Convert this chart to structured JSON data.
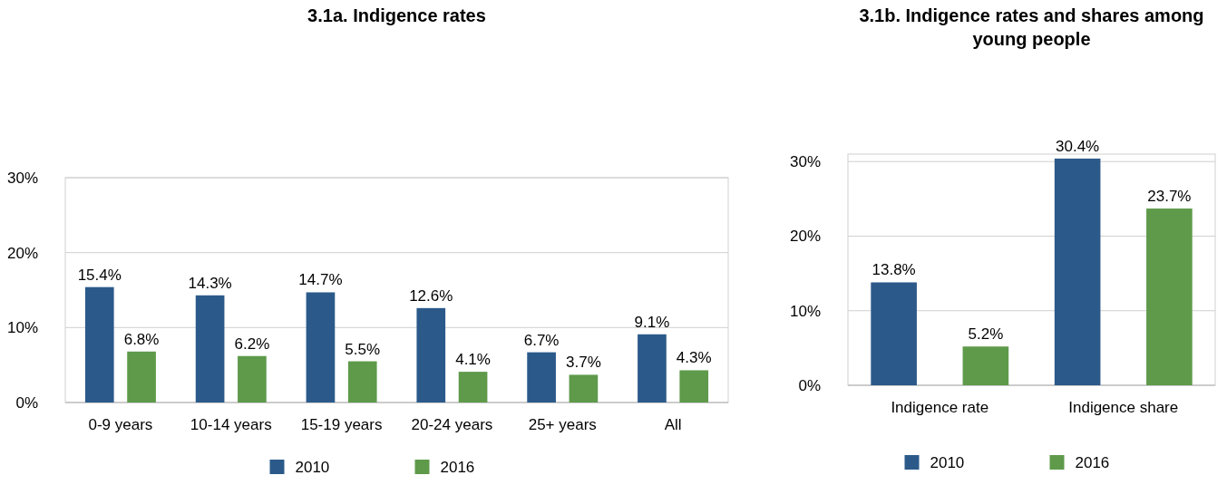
{
  "chart_data": [
    {
      "type": "bar",
      "title": "3.1a. Indigence rates",
      "categories": [
        "0-9 years",
        "10-14 years",
        "15-19 years",
        "20-24 years",
        "25+ years",
        "All"
      ],
      "series": [
        {
          "name": "2010",
          "color": "#2b5a8a",
          "values": [
            15.4,
            14.3,
            14.7,
            12.6,
            6.7,
            9.1
          ],
          "value_labels": [
            "15.4%",
            "14.3%",
            "14.7%",
            "12.6%",
            "6.7%",
            "9.1%"
          ]
        },
        {
          "name": "2016",
          "color": "#5e9a4a",
          "values": [
            6.8,
            6.2,
            5.5,
            4.1,
            3.7,
            4.3
          ],
          "value_labels": [
            "6.8%",
            "6.2%",
            "5.5%",
            "4.1%",
            "3.7%",
            "4.3%"
          ]
        }
      ],
      "ylim": [
        0,
        30
      ],
      "yticks": [
        {
          "value": 0,
          "label": "0%"
        },
        {
          "value": 10,
          "label": "10%"
        },
        {
          "value": 20,
          "label": "20%"
        },
        {
          "value": 30,
          "label": "30%"
        }
      ],
      "grid": "y",
      "legend": "bottom"
    },
    {
      "type": "bar",
      "title": "3.1b. Indigence rates and shares among young people",
      "categories": [
        "Indigence rate",
        "Indigence share"
      ],
      "series": [
        {
          "name": "2010",
          "color": "#2b5a8a",
          "values": [
            13.8,
            30.4
          ],
          "value_labels": [
            "13.8%",
            "30.4%"
          ]
        },
        {
          "name": "2016",
          "color": "#5e9a4a",
          "values": [
            5.2,
            23.7
          ],
          "value_labels": [
            "5.2%",
            "23.7%"
          ]
        }
      ],
      "ylim": [
        0,
        31
      ],
      "yticks": [
        {
          "value": 0,
          "label": "0%"
        },
        {
          "value": 10,
          "label": "10%"
        },
        {
          "value": 20,
          "label": "20%"
        },
        {
          "value": 30,
          "label": "30%"
        }
      ],
      "grid": "y",
      "legend": "bottom"
    }
  ]
}
